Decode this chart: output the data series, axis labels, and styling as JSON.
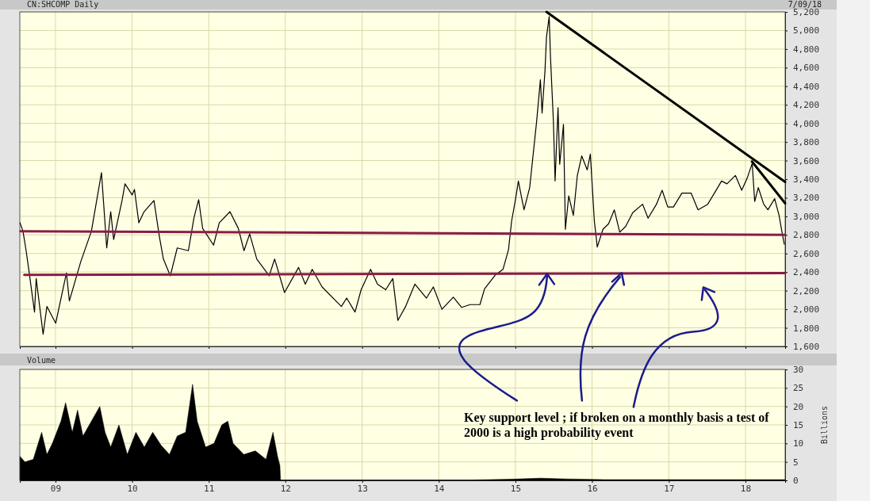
{
  "chart_data": [
    {
      "type": "line",
      "title": "CN:SHCOMP Daily",
      "annotations": [
        "7/09/18",
        {
          "text": "Key support level ; if broken on a monthly basis a test of 2000 is a high probability event",
          "x": "2015-06-01",
          "y": 2390
        }
      ],
      "xlim": [
        "2008-07-15",
        "2018-07-09"
      ],
      "ylim": [
        1600,
        5200
      ],
      "xticks": [
        {
          "value": "2009-01-01",
          "label": null
        },
        {
          "value": "2010-01-01",
          "label": null
        },
        {
          "value": "2011-01-01",
          "label": null
        },
        {
          "value": "2012-01-01",
          "label": null
        },
        {
          "value": "2013-01-01",
          "label": null
        },
        {
          "value": "2014-01-01",
          "label": null
        },
        {
          "value": "2015-01-01",
          "label": null
        },
        {
          "value": "2016-01-01",
          "label": null
        },
        {
          "value": "2017-01-01",
          "label": null
        },
        {
          "value": "2018-01-01",
          "label": null
        }
      ],
      "yticks": [
        {
          "value": 1600,
          "label": "1,600"
        },
        {
          "value": 1800,
          "label": "1,800"
        },
        {
          "value": 2000,
          "label": "2,000"
        },
        {
          "value": 2200,
          "label": "2,200"
        },
        {
          "value": 2400,
          "label": "2,400"
        },
        {
          "value": 2600,
          "label": "2,600"
        },
        {
          "value": 2800,
          "label": "2,800"
        },
        {
          "value": 3000,
          "label": "3,000"
        },
        {
          "value": 3200,
          "label": "3,200"
        },
        {
          "value": 3400,
          "label": "3,400"
        },
        {
          "value": 3600,
          "label": "3,600"
        },
        {
          "value": 3800,
          "label": "3,800"
        },
        {
          "value": 4000,
          "label": "4,000"
        },
        {
          "value": 4200,
          "label": "4,200"
        },
        {
          "value": 4400,
          "label": "4,400"
        },
        {
          "value": 4600,
          "label": "4,600"
        },
        {
          "value": 4800,
          "label": "4,800"
        },
        {
          "value": 5000,
          "label": "5,000"
        },
        {
          "value": 5200,
          "label": "5,200"
        }
      ],
      "tick_labels": "y",
      "grid": true,
      "series": [
        {
          "color": "#000000",
          "x": [
            "2008-07-16",
            "2008-07-30",
            "2008-08-14",
            "2008-08-27",
            "2008-09-23",
            "2008-10-01",
            "2008-11-03",
            "2008-11-21",
            "2009-01-02",
            "2009-02-22",
            "2009-03-08",
            "2009-05-01",
            "2009-06-21",
            "2009-08-08",
            "2009-09-02",
            "2009-09-21",
            "2009-10-05",
            "2009-11-14",
            "2009-11-28",
            "2010-01-01",
            "2010-01-12",
            "2010-02-02",
            "2010-02-27",
            "2010-04-15",
            "2010-05-11",
            "2010-05-30",
            "2010-07-02",
            "2010-08-04",
            "2010-09-26",
            "2010-10-23",
            "2010-11-14",
            "2010-12-03",
            "2011-01-24",
            "2011-02-20",
            "2011-04-12",
            "2011-05-22",
            "2011-06-18",
            "2011-07-15",
            "2011-08-18",
            "2011-10-16",
            "2011-11-11",
            "2011-12-28",
            "2012-03-04",
            "2012-04-05",
            "2012-05-08",
            "2012-06-24",
            "2012-09-24",
            "2012-10-19",
            "2012-11-28",
            "2012-12-27",
            "2013-02-10",
            "2013-03-15",
            "2013-04-23",
            "2013-05-27",
            "2013-06-20",
            "2013-07-27",
            "2013-09-09",
            "2013-11-03",
            "2013-12-06",
            "2014-01-16",
            "2014-03-11",
            "2014-04-20",
            "2014-05-30",
            "2014-07-16",
            "2014-08-07",
            "2014-09-28",
            "2014-11-03",
            "2014-11-29",
            "2014-12-14",
            "2015-01-02",
            "2015-01-15",
            "2015-02-11",
            "2015-03-10",
            "2015-04-12",
            "2015-04-30",
            "2015-05-08",
            "2015-05-22",
            "2015-05-29",
            "2015-06-11",
            "2015-06-17",
            "2015-07-01",
            "2015-07-09",
            "2015-07-23",
            "2015-07-31",
            "2015-08-18",
            "2015-08-22",
            "2015-08-27",
            "2015-09-12",
            "2015-10-04",
            "2015-10-23",
            "2015-11-13",
            "2015-12-09",
            "2015-12-24",
            "2016-01-12",
            "2016-01-26",
            "2016-02-22",
            "2016-03-20",
            "2016-04-16",
            "2016-05-12",
            "2016-06-09",
            "2016-07-13",
            "2016-08-29",
            "2016-09-24",
            "2016-11-03",
            "2016-11-30",
            "2016-12-27",
            "2017-01-23",
            "2017-03-04",
            "2017-04-17",
            "2017-05-20",
            "2017-07-05",
            "2017-08-14",
            "2017-09-09",
            "2017-10-05",
            "2017-11-14",
            "2017-12-14",
            "2018-01-09",
            "2018-02-02",
            "2018-02-14",
            "2018-03-03",
            "2018-03-29",
            "2018-04-18",
            "2018-05-20",
            "2018-06-10",
            "2018-06-24",
            "2018-07-05"
          ],
          "values": [
            2930,
            2840,
            2630,
            2420,
            1970,
            2330,
            1730,
            2030,
            1850,
            2390,
            2090,
            2510,
            2840,
            3470,
            2660,
            3050,
            2750,
            3170,
            3350,
            3230,
            3290,
            2930,
            3050,
            3170,
            2780,
            2540,
            2360,
            2660,
            2630,
            2990,
            3180,
            2870,
            2690,
            2930,
            3050,
            2870,
            2630,
            2810,
            2540,
            2360,
            2540,
            2180,
            2450,
            2270,
            2430,
            2240,
            2030,
            2120,
            1970,
            2210,
            2430,
            2270,
            2210,
            2330,
            1880,
            2030,
            2270,
            2120,
            2240,
            2000,
            2130,
            2020,
            2050,
            2050,
            2220,
            2370,
            2430,
            2640,
            2950,
            3190,
            3380,
            3070,
            3310,
            4020,
            4470,
            4110,
            4570,
            4930,
            5150,
            4720,
            4020,
            3380,
            4170,
            3560,
            3990,
            3500,
            2860,
            3220,
            3010,
            3440,
            3650,
            3500,
            3670,
            2950,
            2670,
            2860,
            2920,
            3070,
            2830,
            2890,
            3040,
            3130,
            2980,
            3130,
            3280,
            3100,
            3100,
            3250,
            3250,
            3070,
            3130,
            3280,
            3380,
            3350,
            3440,
            3280,
            3410,
            3570,
            3160,
            3310,
            3130,
            3070,
            3190,
            3010,
            2830,
            2700
          ]
        },
        {
          "color": "#8b1a4a",
          "x": [
            "2008-07-18",
            "2018-07-09"
          ],
          "values": [
            2840,
            2800
          ]
        },
        {
          "color": "#8b1a4a",
          "x": [
            "2008-08-05",
            "2018-07-09"
          ],
          "values": [
            2370,
            2390
          ]
        },
        {
          "color": "#000000",
          "x": [
            "2015-05-29",
            "2018-07-09"
          ],
          "values": [
            5200,
            3370
          ]
        },
        {
          "color": "#000000",
          "x": [
            "2018-02-01",
            "2018-07-09"
          ],
          "values": [
            3590,
            3140
          ]
        }
      ]
    },
    {
      "type": "area",
      "title": "Volume",
      "ylabel": "Billions",
      "xlim": [
        "2008-07-15",
        "2018-07-09"
      ],
      "ylim": [
        0,
        30
      ],
      "xticks": [
        {
          "value": "2009-01-01",
          "label": "09"
        },
        {
          "value": "2010-01-01",
          "label": "10"
        },
        {
          "value": "2011-01-01",
          "label": "11"
        },
        {
          "value": "2012-01-01",
          "label": "12"
        },
        {
          "value": "2013-01-01",
          "label": "13"
        },
        {
          "value": "2014-01-01",
          "label": "14"
        },
        {
          "value": "2015-01-01",
          "label": "15"
        },
        {
          "value": "2016-01-01",
          "label": "16"
        },
        {
          "value": "2017-01-01",
          "label": "17"
        },
        {
          "value": "2018-01-01",
          "label": "18"
        }
      ],
      "yticks": [
        0,
        5,
        10,
        15,
        20,
        25,
        30
      ],
      "grid": true,
      "series": [
        {
          "color": "#000000",
          "x": [
            "2008-07-16",
            "2008-08-08",
            "2008-09-17",
            "2008-10-27",
            "2008-11-21",
            "2008-12-17",
            "2009-01-27",
            "2009-02-18",
            "2009-03-22",
            "2009-04-16",
            "2009-05-12",
            "2009-06-21",
            "2009-07-31",
            "2009-08-25",
            "2009-09-21",
            "2009-10-30",
            "2009-12-09",
            "2010-01-19",
            "2010-02-28",
            "2010-04-09",
            "2010-05-19",
            "2010-06-28",
            "2010-08-04",
            "2010-09-13",
            "2010-10-16",
            "2010-11-07",
            "2010-12-17",
            "2011-01-26",
            "2011-03-04",
            "2011-04-02",
            "2011-04-27",
            "2011-06-17",
            "2011-08-11",
            "2011-10-01",
            "2011-11-03",
            "2011-11-25",
            "2011-12-06",
            "2011-12-09",
            "2012-06-01",
            "2013-06-01",
            "2014-06-01",
            "2014-12-01",
            "2015-05-01",
            "2015-09-01",
            "2016-03-01",
            "2017-03-01",
            "2018-03-01",
            "2018-07-09"
          ],
          "values": [
            6.5,
            5,
            5.7,
            13,
            7,
            10,
            16,
            21,
            13,
            19,
            12,
            16,
            20,
            13,
            9,
            15,
            7,
            13,
            9,
            13,
            9.5,
            7,
            12,
            13,
            26,
            16,
            9,
            10,
            15,
            16,
            10,
            7,
            8,
            5.7,
            13,
            6.5,
            4,
            0.1,
            0.1,
            0.1,
            0.1,
            0.3,
            0.6,
            0.4,
            0.2,
            0.2,
            0.2,
            0.2
          ]
        }
      ]
    }
  ]
}
